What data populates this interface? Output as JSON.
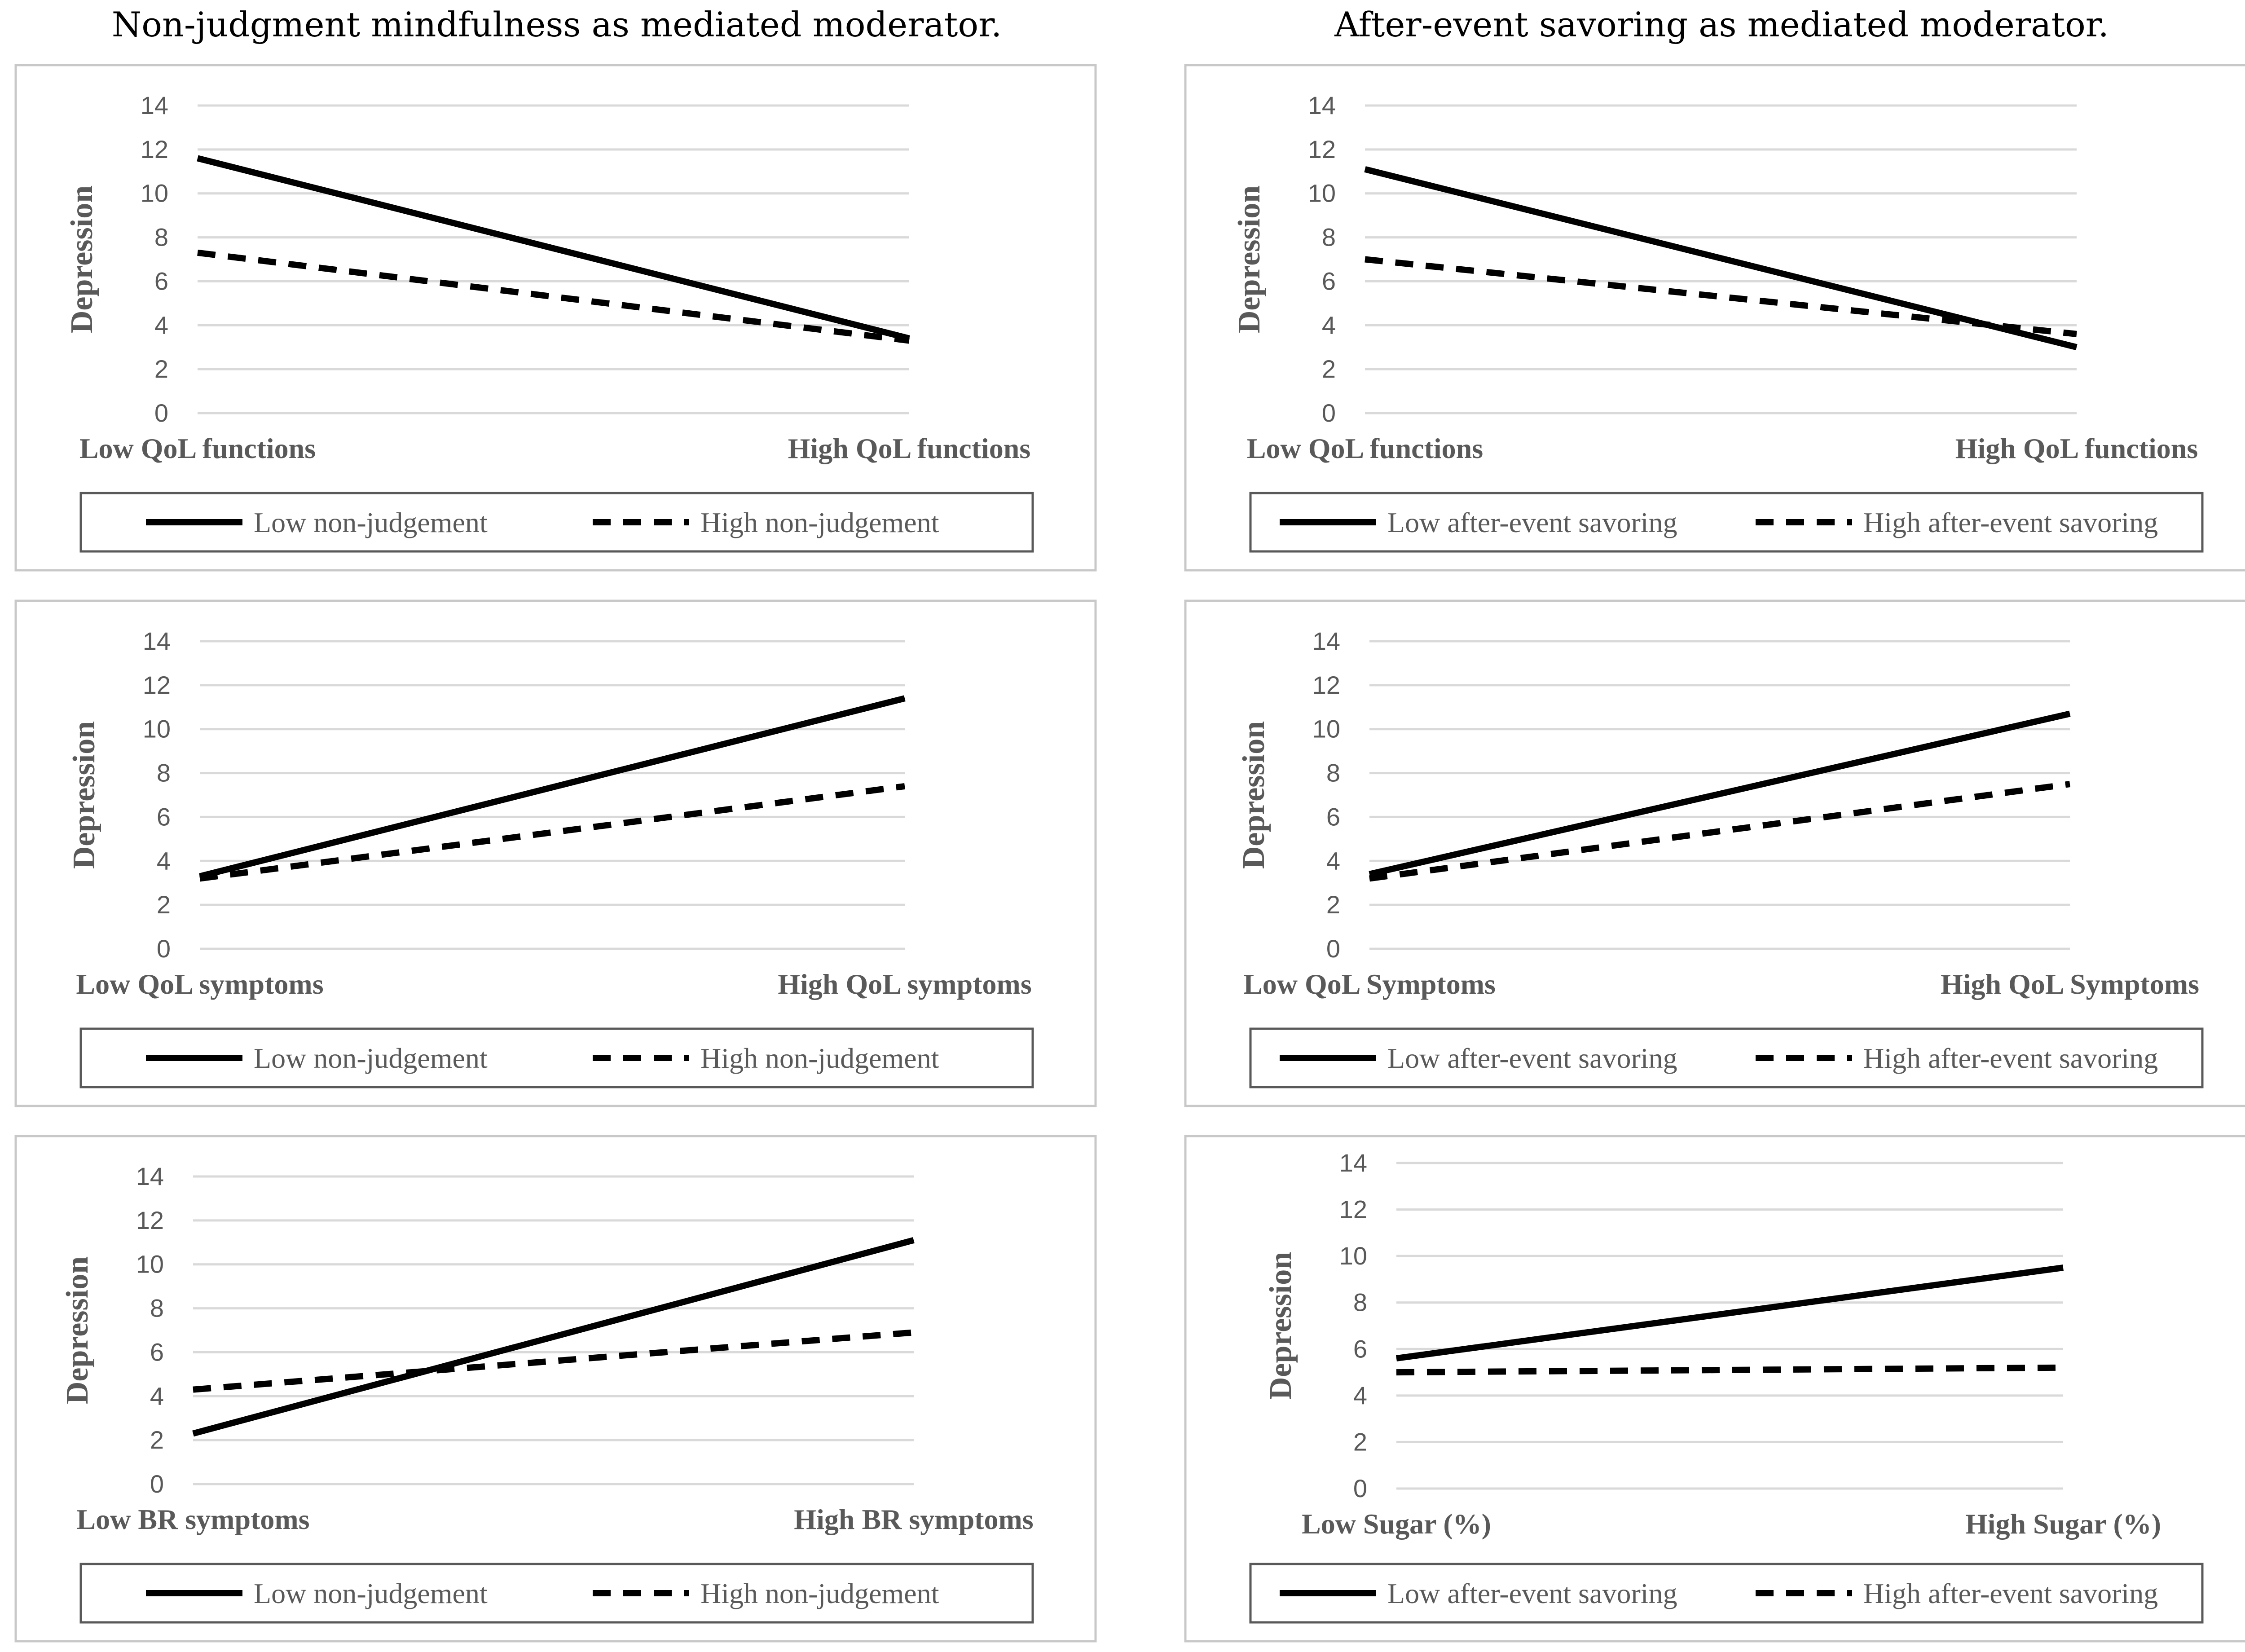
{
  "column_titles": [
    "Non-judgment mindfulness as mediated moderator.",
    "After-event savoring as mediated moderator."
  ],
  "colors": {
    "line": "#000000",
    "grid": "#d9d9d9",
    "frame": "#c8c8c8",
    "legend_border": "#595959",
    "text": "#595959"
  },
  "chart_data": [
    {
      "type": "line",
      "ylabel": "Depression",
      "categories": [
        "Low QoL functions",
        "High QoL functions"
      ],
      "yticks": [
        0,
        2,
        4,
        6,
        8,
        10,
        12,
        14
      ],
      "ylim": [
        0,
        14
      ],
      "grid": true,
      "legend_position": "bottom",
      "series": [
        {
          "name": "Low non-judgement",
          "style": "solid",
          "values": [
            11.6,
            3.4
          ]
        },
        {
          "name": "High non-judgement",
          "style": "dashed",
          "values": [
            7.3,
            3.3
          ]
        }
      ]
    },
    {
      "type": "line",
      "ylabel": "Depression",
      "categories": [
        "Low QoL functions",
        "High QoL functions"
      ],
      "yticks": [
        0,
        2,
        4,
        6,
        8,
        10,
        12,
        14
      ],
      "ylim": [
        0,
        14
      ],
      "grid": true,
      "legend_position": "bottom",
      "series": [
        {
          "name": "Low after-event savoring",
          "style": "solid",
          "values": [
            11.1,
            3.0
          ]
        },
        {
          "name": "High after-event savoring",
          "style": "dashed",
          "values": [
            7.0,
            3.6
          ]
        }
      ]
    },
    {
      "type": "line",
      "ylabel": "Depression",
      "categories": [
        "Low QoL symptoms",
        "High QoL symptoms"
      ],
      "yticks": [
        0,
        2,
        4,
        6,
        8,
        10,
        12,
        14
      ],
      "ylim": [
        0,
        14
      ],
      "grid": true,
      "legend_position": "bottom",
      "series": [
        {
          "name": "Low non-judgement",
          "style": "solid",
          "values": [
            3.3,
            11.4
          ]
        },
        {
          "name": "High non-judgement",
          "style": "dashed",
          "values": [
            3.2,
            7.4
          ]
        }
      ]
    },
    {
      "type": "line",
      "ylabel": "Depression",
      "categories": [
        "Low QoL Symptoms",
        "High QoL Symptoms"
      ],
      "yticks": [
        0,
        2,
        4,
        6,
        8,
        10,
        12,
        14
      ],
      "ylim": [
        0,
        14
      ],
      "grid": true,
      "legend_position": "bottom",
      "series": [
        {
          "name": "Low after-event savoring",
          "style": "solid",
          "values": [
            3.4,
            10.7
          ]
        },
        {
          "name": "High after-event savoring",
          "style": "dashed",
          "values": [
            3.2,
            7.5
          ]
        }
      ]
    },
    {
      "type": "line",
      "ylabel": "Depression",
      "categories": [
        "Low BR symptoms",
        "High BR symptoms"
      ],
      "yticks": [
        0,
        2,
        4,
        6,
        8,
        10,
        12,
        14
      ],
      "ylim": [
        0,
        14
      ],
      "grid": true,
      "legend_position": "bottom",
      "series": [
        {
          "name": "Low non-judgement",
          "style": "solid",
          "values": [
            2.3,
            11.1
          ]
        },
        {
          "name": "High non-judgement",
          "style": "dashed",
          "values": [
            4.3,
            6.9
          ]
        }
      ]
    },
    {
      "type": "line",
      "ylabel": "Depression",
      "categories": [
        "Low Sugar (%)",
        "High Sugar (%)"
      ],
      "yticks": [
        0,
        2,
        4,
        6,
        8,
        10,
        12,
        14
      ],
      "ylim": [
        0,
        14
      ],
      "grid": true,
      "legend_position": "bottom",
      "series": [
        {
          "name": "Low after-event savoring",
          "style": "solid",
          "values": [
            5.6,
            9.5
          ]
        },
        {
          "name": "High after-event savoring",
          "style": "dashed",
          "values": [
            5.0,
            5.2
          ]
        }
      ]
    }
  ]
}
